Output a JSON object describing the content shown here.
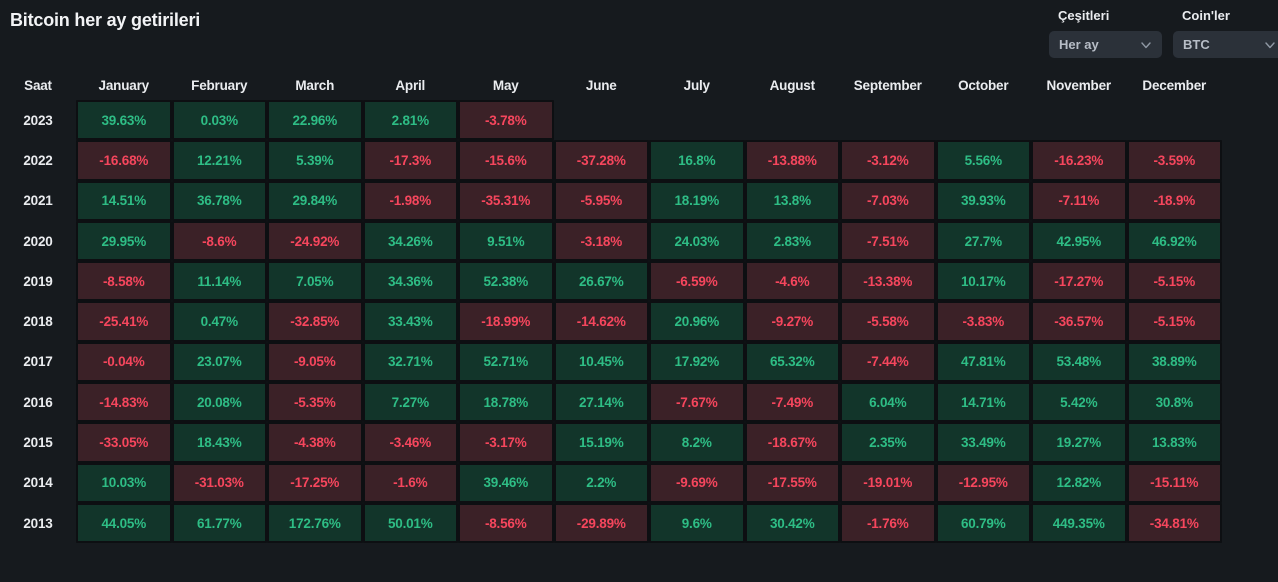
{
  "page": {
    "title": "Bitcoin her ay getirileri",
    "background_color": "#161A1E"
  },
  "controls": {
    "variety": {
      "label": "Çeşitleri",
      "value": "Her ay",
      "icon": "chevron-down-icon"
    },
    "coins": {
      "label": "Coin'ler",
      "value": "BTC",
      "icon": "chevron-down-icon"
    }
  },
  "colors": {
    "positive_text": "#2EBD85",
    "positive_bg": "#12352A",
    "negative_text": "#F6465D",
    "negative_bg": "#3B2127",
    "dropdown_bg": "#2B3139",
    "header_text": "#EAECEF"
  },
  "table": {
    "headers": [
      "Saat",
      "January",
      "February",
      "March",
      "April",
      "May",
      "June",
      "July",
      "August",
      "September",
      "October",
      "November",
      "December"
    ],
    "rows": [
      {
        "year": "2023",
        "cells": [
          "39.63%",
          "0.03%",
          "22.96%",
          "2.81%",
          "-3.78%",
          "",
          "",
          "",
          "",
          "",
          "",
          ""
        ]
      },
      {
        "year": "2022",
        "cells": [
          "-16.68%",
          "12.21%",
          "5.39%",
          "-17.3%",
          "-15.6%",
          "-37.28%",
          "16.8%",
          "-13.88%",
          "-3.12%",
          "5.56%",
          "-16.23%",
          "-3.59%"
        ]
      },
      {
        "year": "2021",
        "cells": [
          "14.51%",
          "36.78%",
          "29.84%",
          "-1.98%",
          "-35.31%",
          "-5.95%",
          "18.19%",
          "13.8%",
          "-7.03%",
          "39.93%",
          "-7.11%",
          "-18.9%"
        ]
      },
      {
        "year": "2020",
        "cells": [
          "29.95%",
          "-8.6%",
          "-24.92%",
          "34.26%",
          "9.51%",
          "-3.18%",
          "24.03%",
          "2.83%",
          "-7.51%",
          "27.7%",
          "42.95%",
          "46.92%"
        ]
      },
      {
        "year": "2019",
        "cells": [
          "-8.58%",
          "11.14%",
          "7.05%",
          "34.36%",
          "52.38%",
          "26.67%",
          "-6.59%",
          "-4.6%",
          "-13.38%",
          "10.17%",
          "-17.27%",
          "-5.15%"
        ]
      },
      {
        "year": "2018",
        "cells": [
          "-25.41%",
          "0.47%",
          "-32.85%",
          "33.43%",
          "-18.99%",
          "-14.62%",
          "20.96%",
          "-9.27%",
          "-5.58%",
          "-3.83%",
          "-36.57%",
          "-5.15%"
        ]
      },
      {
        "year": "2017",
        "cells": [
          "-0.04%",
          "23.07%",
          "-9.05%",
          "32.71%",
          "52.71%",
          "10.45%",
          "17.92%",
          "65.32%",
          "-7.44%",
          "47.81%",
          "53.48%",
          "38.89%"
        ]
      },
      {
        "year": "2016",
        "cells": [
          "-14.83%",
          "20.08%",
          "-5.35%",
          "7.27%",
          "18.78%",
          "27.14%",
          "-7.67%",
          "-7.49%",
          "6.04%",
          "14.71%",
          "5.42%",
          "30.8%"
        ]
      },
      {
        "year": "2015",
        "cells": [
          "-33.05%",
          "18.43%",
          "-4.38%",
          "-3.46%",
          "-3.17%",
          "15.19%",
          "8.2%",
          "-18.67%",
          "2.35%",
          "33.49%",
          "19.27%",
          "13.83%"
        ]
      },
      {
        "year": "2014",
        "cells": [
          "10.03%",
          "-31.03%",
          "-17.25%",
          "-1.6%",
          "39.46%",
          "2.2%",
          "-9.69%",
          "-17.55%",
          "-19.01%",
          "-12.95%",
          "12.82%",
          "-15.11%"
        ]
      },
      {
        "year": "2013",
        "cells": [
          "44.05%",
          "61.77%",
          "172.76%",
          "50.01%",
          "-8.56%",
          "-29.89%",
          "9.6%",
          "30.42%",
          "-1.76%",
          "60.79%",
          "449.35%",
          "-34.81%"
        ]
      }
    ]
  }
}
